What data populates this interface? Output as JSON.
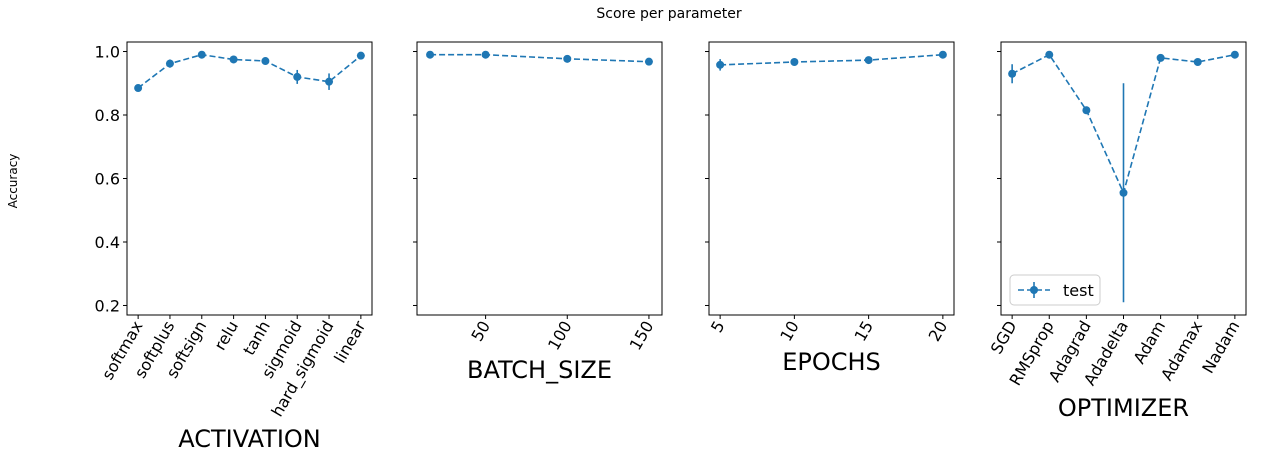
{
  "figure": {
    "suptitle": "Score per parameter",
    "ylabel": "Accuracy"
  },
  "style": {
    "series_color": "#1f77b4",
    "line_style": "dashed",
    "marker": "circle"
  },
  "chart_data": [
    {
      "type": "line",
      "xlabel": "ACTIVATION",
      "x_scale": "categorical",
      "categories": [
        "softmax",
        "softplus",
        "softsign",
        "relu",
        "tanh",
        "sigmoid",
        "hard_sigmoid",
        "linear"
      ],
      "ylim": [
        0.17,
        1.03
      ],
      "yticks": [
        0.2,
        0.4,
        0.6,
        0.8,
        1.0
      ],
      "ytick_labels": [
        "0.2",
        "0.4",
        "0.6",
        "0.8",
        "1.0"
      ],
      "show_yticklabels": true,
      "xtick_rotation": 60,
      "series": [
        {
          "name": "test",
          "values": [
            0.885,
            0.962,
            0.99,
            0.975,
            0.97,
            0.92,
            0.905,
            0.987
          ],
          "errors": [
            0.004,
            0.013,
            0.003,
            0.005,
            0.004,
            0.022,
            0.026,
            0.003
          ]
        }
      ]
    },
    {
      "type": "line",
      "xlabel": "BATCH_SIZE",
      "x_scale": "linear",
      "x": [
        16,
        50,
        100,
        150
      ],
      "xlim": [
        8,
        158
      ],
      "xticks": [
        50,
        100,
        150
      ],
      "xtick_labels": [
        "50",
        "100",
        "150"
      ],
      "ylim": [
        0.17,
        1.03
      ],
      "yticks": [
        0.2,
        0.4,
        0.6,
        0.8,
        1.0
      ],
      "show_yticklabels": false,
      "xtick_rotation": 60,
      "series": [
        {
          "name": "test",
          "values": [
            0.99,
            0.99,
            0.977,
            0.968
          ],
          "errors": [
            0.003,
            0.003,
            0.004,
            0.004
          ]
        }
      ]
    },
    {
      "type": "line",
      "xlabel": "EPOCHS",
      "x_scale": "linear",
      "x": [
        5,
        10,
        15,
        20
      ],
      "xlim": [
        4.25,
        20.75
      ],
      "xticks": [
        5,
        10,
        15,
        20
      ],
      "xtick_labels": [
        "5",
        "10",
        "15",
        "20"
      ],
      "ylim": [
        0.17,
        1.03
      ],
      "yticks": [
        0.2,
        0.4,
        0.6,
        0.8,
        1.0
      ],
      "show_yticklabels": false,
      "xtick_rotation": 60,
      "series": [
        {
          "name": "test",
          "values": [
            0.958,
            0.967,
            0.973,
            0.99
          ],
          "errors": [
            0.018,
            0.004,
            0.004,
            0.003
          ]
        }
      ]
    },
    {
      "type": "line",
      "xlabel": "OPTIMIZER",
      "x_scale": "categorical",
      "categories": [
        "SGD",
        "RMSprop",
        "Adagrad",
        "Adadelta",
        "Adam",
        "Adamax",
        "Nadam"
      ],
      "ylim": [
        0.17,
        1.03
      ],
      "yticks": [
        0.2,
        0.4,
        0.6,
        0.8,
        1.0
      ],
      "show_yticklabels": false,
      "xtick_rotation": 60,
      "legend": {
        "show": true,
        "location": "lower-left",
        "entries": [
          "test"
        ]
      },
      "series": [
        {
          "name": "test",
          "values": [
            0.93,
            0.99,
            0.815,
            0.555,
            0.98,
            0.967,
            0.99
          ],
          "errors": [
            0.03,
            0.003,
            0.012,
            0.345,
            0.003,
            0.004,
            0.003
          ]
        }
      ]
    }
  ]
}
